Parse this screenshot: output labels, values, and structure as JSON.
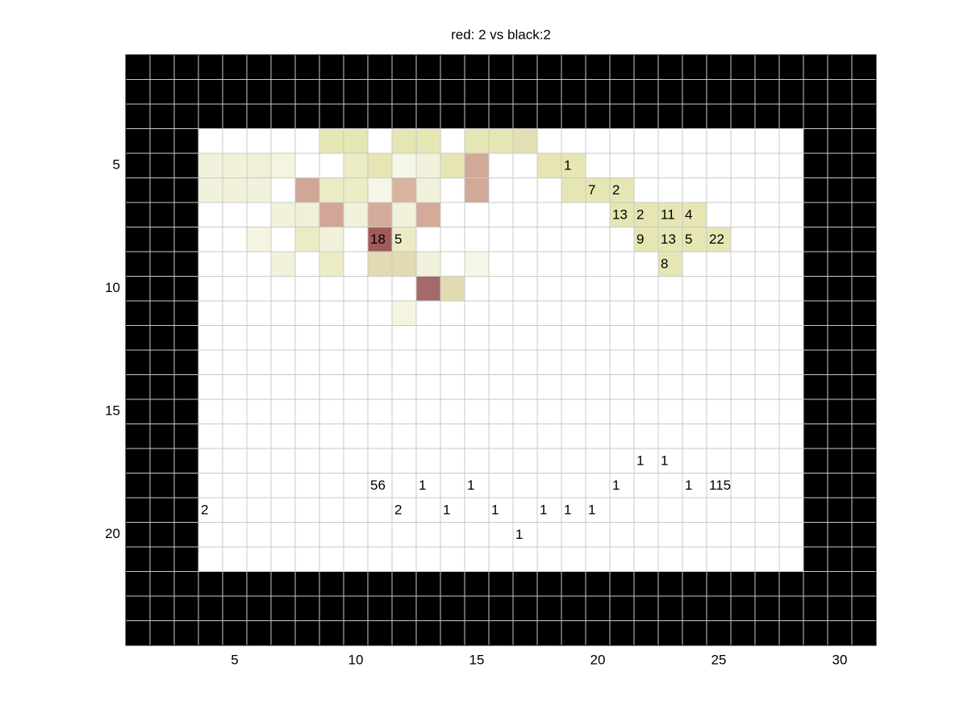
{
  "chart_data": {
    "type": "heatmap",
    "title": "red: 2 vs black:2",
    "xlim": [
      0.5,
      31.5
    ],
    "ylim": [
      0.5,
      24.5
    ],
    "y_reversed": true,
    "xticks": [
      5,
      10,
      15,
      20,
      25,
      30
    ],
    "yticks": [
      5,
      10,
      15,
      20
    ],
    "grid": true,
    "wall_color": "#000000",
    "interior": {
      "cols": [
        4,
        28
      ],
      "rows": [
        4,
        21
      ]
    },
    "cells": [
      {
        "row": 4,
        "col": 9,
        "color": "#e6e6b4"
      },
      {
        "row": 4,
        "col": 10,
        "color": "#e6e6b4"
      },
      {
        "row": 4,
        "col": 12,
        "color": "#e6e6b4"
      },
      {
        "row": 4,
        "col": 13,
        "color": "#e6e6b4"
      },
      {
        "row": 4,
        "col": 15,
        "color": "#e6e6b4"
      },
      {
        "row": 4,
        "col": 16,
        "color": "#e6e6b4"
      },
      {
        "row": 4,
        "col": 17,
        "color": "#e2e0b4"
      },
      {
        "row": 5,
        "col": 4,
        "color": "#f2f2dc"
      },
      {
        "row": 5,
        "col": 5,
        "color": "#f2f2dc"
      },
      {
        "row": 5,
        "col": 6,
        "color": "#f0f0d6"
      },
      {
        "row": 5,
        "col": 7,
        "color": "#f4f4e0"
      },
      {
        "row": 5,
        "col": 10,
        "color": "#ececc4"
      },
      {
        "row": 5,
        "col": 11,
        "color": "#e6e6b4"
      },
      {
        "row": 5,
        "col": 12,
        "color": "#f6f6e6"
      },
      {
        "row": 5,
        "col": 13,
        "color": "#f2f2dc"
      },
      {
        "row": 5,
        "col": 14,
        "color": "#e6e6b4"
      },
      {
        "row": 5,
        "col": 15,
        "color": "#d2a898"
      },
      {
        "row": 5,
        "col": 18,
        "color": "#e6e6b4"
      },
      {
        "row": 5,
        "col": 19,
        "color": "#e6e6b4"
      },
      {
        "row": 6,
        "col": 4,
        "color": "#f2f2dc"
      },
      {
        "row": 6,
        "col": 5,
        "color": "#f2f2dc"
      },
      {
        "row": 6,
        "col": 6,
        "color": "#f2f2dc"
      },
      {
        "row": 6,
        "col": 8,
        "color": "#d2a696"
      },
      {
        "row": 6,
        "col": 9,
        "color": "#ececc4"
      },
      {
        "row": 6,
        "col": 10,
        "color": "#ececc4"
      },
      {
        "row": 6,
        "col": 11,
        "color": "#f6f6e6"
      },
      {
        "row": 6,
        "col": 12,
        "color": "#d8b4a0"
      },
      {
        "row": 6,
        "col": 13,
        "color": "#f2f2dc"
      },
      {
        "row": 6,
        "col": 15,
        "color": "#d2a898"
      },
      {
        "row": 6,
        "col": 19,
        "color": "#e6e6b4"
      },
      {
        "row": 6,
        "col": 20,
        "color": "#e6e6b4"
      },
      {
        "row": 6,
        "col": 21,
        "color": "#e6e6b4"
      },
      {
        "row": 7,
        "col": 7,
        "color": "#f2f2dc"
      },
      {
        "row": 7,
        "col": 8,
        "color": "#f0f0d6"
      },
      {
        "row": 7,
        "col": 9,
        "color": "#d2a696"
      },
      {
        "row": 7,
        "col": 10,
        "color": "#f2f2dc"
      },
      {
        "row": 7,
        "col": 11,
        "color": "#d4aa98"
      },
      {
        "row": 7,
        "col": 12,
        "color": "#f2f2dc"
      },
      {
        "row": 7,
        "col": 13,
        "color": "#d4aa98"
      },
      {
        "row": 7,
        "col": 21,
        "color": "#e6e6b4"
      },
      {
        "row": 7,
        "col": 22,
        "color": "#e6e6b4"
      },
      {
        "row": 7,
        "col": 23,
        "color": "#e6e6b4"
      },
      {
        "row": 7,
        "col": 24,
        "color": "#e6e6b4"
      },
      {
        "row": 8,
        "col": 6,
        "color": "#f4f4e0"
      },
      {
        "row": 8,
        "col": 8,
        "color": "#ececc4"
      },
      {
        "row": 8,
        "col": 9,
        "color": "#f2f2dc"
      },
      {
        "row": 8,
        "col": 11,
        "color": "#a05a5a"
      },
      {
        "row": 8,
        "col": 12,
        "color": "#ececc4"
      },
      {
        "row": 8,
        "col": 22,
        "color": "#e6e6b4"
      },
      {
        "row": 8,
        "col": 23,
        "color": "#e6e6b4"
      },
      {
        "row": 8,
        "col": 24,
        "color": "#e6e6b4"
      },
      {
        "row": 8,
        "col": 25,
        "color": "#e6e6b4"
      },
      {
        "row": 9,
        "col": 7,
        "color": "#f2f2dc"
      },
      {
        "row": 9,
        "col": 9,
        "color": "#ececc4"
      },
      {
        "row": 9,
        "col": 11,
        "color": "#e2dab0"
      },
      {
        "row": 9,
        "col": 12,
        "color": "#e2dab0"
      },
      {
        "row": 9,
        "col": 13,
        "color": "#f2f2dc"
      },
      {
        "row": 9,
        "col": 15,
        "color": "#f6f6e6"
      },
      {
        "row": 9,
        "col": 23,
        "color": "#e6e6b4"
      },
      {
        "row": 10,
        "col": 13,
        "color": "#a46a6a"
      },
      {
        "row": 10,
        "col": 14,
        "color": "#e2dab0"
      },
      {
        "row": 11,
        "col": 12,
        "color": "#f4f4e0"
      }
    ],
    "labels": [
      {
        "row": 5,
        "col": 19,
        "text": "1"
      },
      {
        "row": 6,
        "col": 20,
        "text": "7"
      },
      {
        "row": 6,
        "col": 21,
        "text": "2"
      },
      {
        "row": 7,
        "col": 21,
        "text": "13"
      },
      {
        "row": 7,
        "col": 22,
        "text": "2"
      },
      {
        "row": 7,
        "col": 23,
        "text": "11"
      },
      {
        "row": 7,
        "col": 24,
        "text": "4"
      },
      {
        "row": 8,
        "col": 11,
        "text": "18"
      },
      {
        "row": 8,
        "col": 12,
        "text": "5"
      },
      {
        "row": 8,
        "col": 22,
        "text": "9"
      },
      {
        "row": 8,
        "col": 23,
        "text": "13"
      },
      {
        "row": 8,
        "col": 24,
        "text": "5"
      },
      {
        "row": 8,
        "col": 25,
        "text": "22"
      },
      {
        "row": 9,
        "col": 23,
        "text": "8"
      },
      {
        "row": 17,
        "col": 22,
        "text": "1"
      },
      {
        "row": 17,
        "col": 23,
        "text": "1"
      },
      {
        "row": 18,
        "col": 11,
        "text": "56"
      },
      {
        "row": 18,
        "col": 13,
        "text": "1"
      },
      {
        "row": 18,
        "col": 15,
        "text": "1"
      },
      {
        "row": 18,
        "col": 21,
        "text": "1"
      },
      {
        "row": 18,
        "col": 24,
        "text": "1"
      },
      {
        "row": 18,
        "col": 25,
        "text": "115"
      },
      {
        "row": 19,
        "col": 4,
        "text": "2"
      },
      {
        "row": 19,
        "col": 12,
        "text": "2"
      },
      {
        "row": 19,
        "col": 14,
        "text": "1"
      },
      {
        "row": 19,
        "col": 16,
        "text": "1"
      },
      {
        "row": 19,
        "col": 18,
        "text": "1"
      },
      {
        "row": 19,
        "col": 19,
        "text": "1"
      },
      {
        "row": 19,
        "col": 20,
        "text": "1"
      },
      {
        "row": 20,
        "col": 17,
        "text": "1"
      }
    ]
  }
}
